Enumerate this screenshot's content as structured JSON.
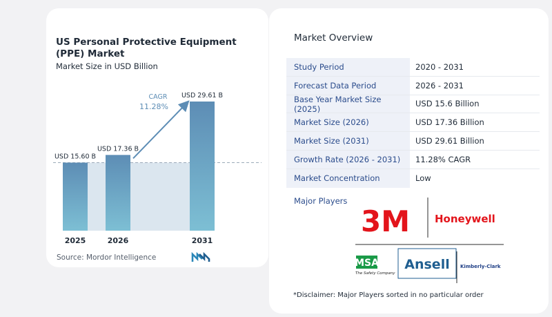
{
  "chart": {
    "title": "US Personal Protective Equipment (PPE) Market",
    "subtitle": "Market Size in USD Billion",
    "source": "Source:  Mordor Intelligence",
    "cagr_label": "CAGR",
    "cagr_value": "11.28%"
  },
  "chart_data": {
    "type": "bar",
    "categories": [
      "2025",
      "2026",
      "2031"
    ],
    "values": [
      15.6,
      17.36,
      29.61
    ],
    "data_labels": [
      "USD 15.60 B",
      "USD 17.36 B",
      "USD 29.61 B"
    ],
    "title": "US Personal Protective Equipment (PPE) Market",
    "subtitle": "Market Size in USD Billion",
    "xlabel": "",
    "ylabel": "",
    "ylim": [
      0,
      29.61
    ],
    "grid": false,
    "colors": {
      "bar_top": "#5d8db5",
      "bar_bottom": "#7dbfd4",
      "shade": "#dbe6ef",
      "arrow": "#5d8db5",
      "cagr": "#5d8db5"
    }
  },
  "overview": {
    "title": "Market Overview",
    "rows": [
      {
        "label": "Study Period",
        "value": "2020 - 2031"
      },
      {
        "label": "Forecast Data Period",
        "value": "2026 - 2031"
      },
      {
        "label": "Base Year Market Size (2025)",
        "value": "USD 15.6 Billion"
      },
      {
        "label": "Market Size (2026)",
        "value": "USD 17.36 Billion"
      },
      {
        "label": "Market Size (2031)",
        "value": "USD 29.61 Billion"
      },
      {
        "label": "Growth Rate (2026 - 2031)",
        "value": "11.28% CAGR"
      },
      {
        "label": "Market Concentration",
        "value": "Low"
      }
    ],
    "major_players_label": "Major Players",
    "players": [
      "3M",
      "Honeywell",
      "MSA",
      "The Safety Company",
      "Ansell",
      "Kimberly-Clark"
    ],
    "disclaimer": "*Disclaimer: Major Players sorted in no particular order"
  }
}
